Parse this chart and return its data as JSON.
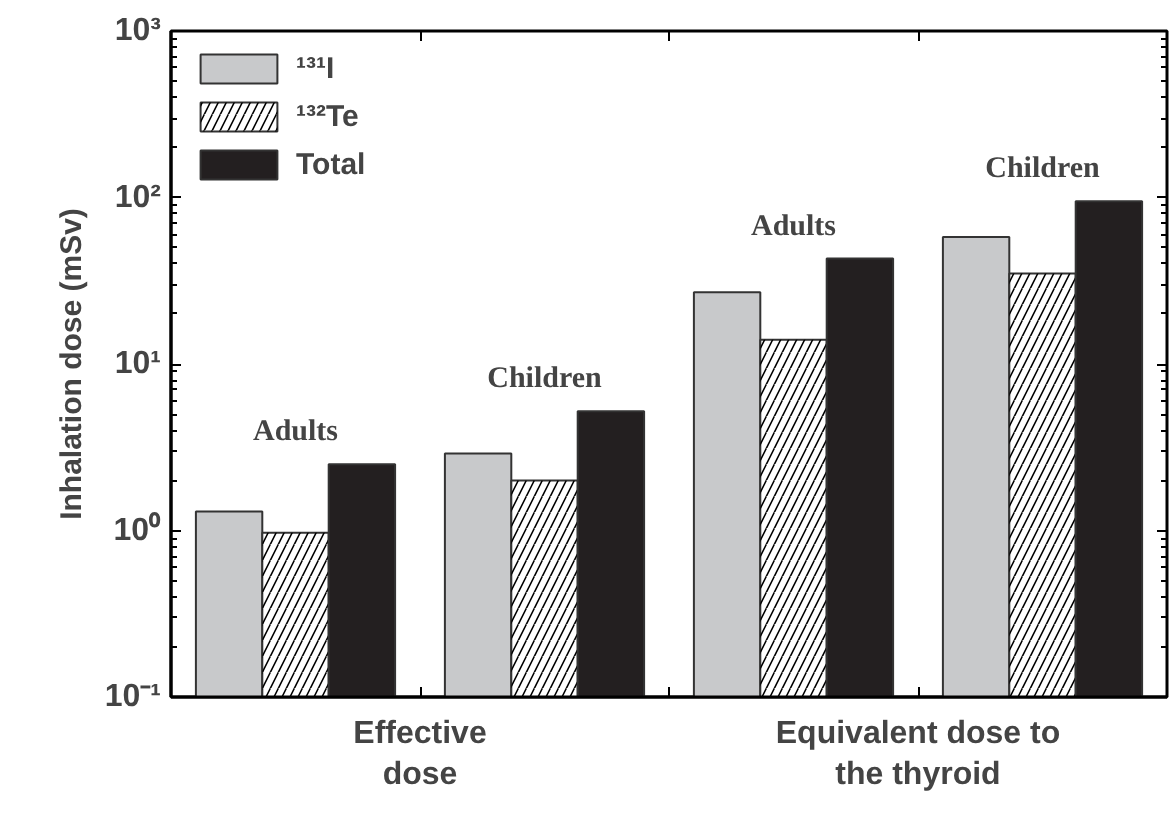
{
  "chart_data": {
    "type": "bar",
    "ylabel": "Inhalation dose (mSv)",
    "log": true,
    "categories": [
      "Adults",
      "Children",
      "Adults",
      "Children"
    ],
    "series": [
      {
        "name": "¹³¹I",
        "color": "#c8c9cb",
        "values": [
          1.3,
          2.9,
          27,
          58
        ]
      },
      {
        "name": "¹³²Te",
        "color": "#ffffff",
        "values": [
          0.97,
          2.0,
          14,
          35
        ]
      },
      {
        "name": "Total",
        "color": "#231f20",
        "values": [
          2.5,
          5.2,
          43,
          95
        ]
      }
    ],
    "ylim": [
      0.1,
      1000
    ],
    "yticks": [
      {
        "value": 0.1,
        "label": "10⁻¹"
      },
      {
        "value": 1,
        "label": "10⁰"
      },
      {
        "value": 10,
        "label": "10¹"
      },
      {
        "value": 100,
        "label": "10²"
      },
      {
        "value": 1000,
        "label": "10³"
      }
    ],
    "annotations": [
      "Effective dose",
      "Equivalent dose to the thyroid"
    ],
    "legend": "top left",
    "grid": false
  }
}
